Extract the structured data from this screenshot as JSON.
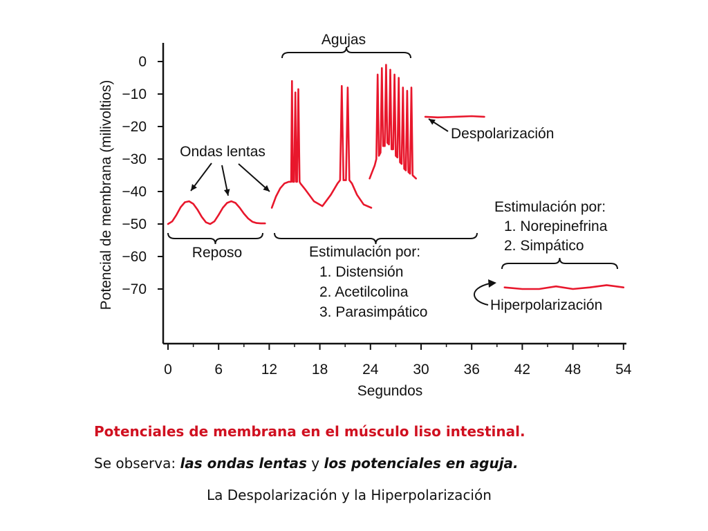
{
  "colors": {
    "trace": "#e8172c",
    "ink": "#111111",
    "caption_title": "#d01020"
  },
  "chart_data": {
    "type": "line",
    "ylabel": "Potencial de membrana (milivoltios)",
    "xlabel": "Segundos",
    "x_ticks": [
      "0",
      "6",
      "12",
      "18",
      "24",
      "30",
      "36",
      "42",
      "48",
      "54"
    ],
    "y_ticks": [
      "0",
      "−10",
      "−20",
      "−30",
      "−40",
      "−50",
      "−60",
      "−70"
    ],
    "xlim": [
      0,
      54
    ],
    "ylim": [
      -88,
      3
    ],
    "series": [
      {
        "x": [
          0,
          0.5,
          1,
          1.5,
          2,
          2.5,
          3,
          3.5,
          4,
          4.5,
          5,
          5.5,
          6,
          6.5,
          7,
          7.5,
          8,
          8.5,
          9,
          9.5,
          10,
          10.5,
          11,
          11.5
        ],
        "y": [
          -50,
          -49.2,
          -47.2,
          -44.8,
          -43.3,
          -43,
          -43.8,
          -45.6,
          -47.8,
          -49.5,
          -50,
          -49.2,
          -47.2,
          -45,
          -43.5,
          -43,
          -43.5,
          -45,
          -46.8,
          -48.3,
          -49.3,
          -49.7,
          -49.8,
          -49.8
        ]
      },
      {
        "x": [
          12.3,
          12.8,
          13.3,
          13.8,
          14.3,
          14.6,
          14.7,
          14.8,
          14.95,
          15.1,
          15.2,
          15.3,
          15.45,
          15.6,
          15.7,
          16.3,
          17.3,
          18.3,
          19.3,
          20.1,
          20.4,
          20.6,
          20.8,
          21.1,
          21.3,
          21.5,
          21.8,
          22.4,
          23.2,
          24.1
        ],
        "y": [
          -45,
          -41.5,
          -39,
          -37.5,
          -37,
          -37,
          -6,
          -37,
          -37,
          -9.5,
          -37,
          -37,
          -8.5,
          -37,
          -37.5,
          -39.5,
          -43,
          -44.5,
          -41,
          -37.5,
          -36.5,
          -7.5,
          -36.5,
          -36.5,
          -8,
          -36.5,
          -37.5,
          -41,
          -44,
          -45
        ]
      },
      {
        "x": [
          23.9,
          24.2,
          24.5,
          24.7,
          24.85,
          25,
          25.2,
          25.35,
          25.5,
          25.7,
          25.85,
          26,
          26.2,
          26.35,
          26.5,
          26.7,
          26.85,
          27,
          27.2,
          27.35,
          27.5,
          27.7,
          27.85,
          28,
          28.2,
          28.35,
          28.5,
          28.7,
          28.85,
          29,
          29.4
        ],
        "y": [
          -36,
          -34,
          -32,
          -30,
          -4,
          -29,
          -28,
          -2,
          -26,
          -26,
          -1,
          -25,
          -25.5,
          -2.5,
          -27,
          -27,
          -4,
          -29,
          -29.5,
          -5,
          -31,
          -31.5,
          -8,
          -33,
          -33.5,
          -9,
          -34,
          -34.5,
          -8,
          -35,
          -36
        ]
      },
      {
        "x": [
          30.5,
          32,
          34,
          36,
          37.5
        ],
        "y": [
          -17,
          -17.2,
          -17,
          -16.8,
          -17
        ]
      },
      {
        "x": [
          39.9,
          42,
          44,
          46,
          48,
          50,
          52,
          54
        ],
        "y": [
          -69.5,
          -70,
          -70,
          -69.2,
          -70,
          -69.5,
          -68.8,
          -69.5
        ]
      }
    ],
    "annotations": {
      "agujas": "Agujas",
      "ondas_lentas": "Ondas lentas",
      "despolarizacion": "Despolarización",
      "hiperpolarizacion": "Hiperpolarización",
      "reposo": "Reposo",
      "stim_parasimp": [
        "Estimulación por:",
        "1. Distensión",
        "2. Acetilcolina",
        "3. Parasimpático"
      ],
      "stim_simp": [
        "Estimulación por:",
        "1. Norepinefrina",
        "2. Simpático"
      ]
    }
  },
  "caption": {
    "title": "Potenciales de membrana en el músculo liso intestinal.",
    "line2_prefix": "Se observa: ",
    "line2_em1": "las ondas lentas",
    "line2_mid": " y ",
    "line2_em2": "los potenciales en aguja.",
    "line3": "La Despolarización y la Hiperpolarización"
  }
}
